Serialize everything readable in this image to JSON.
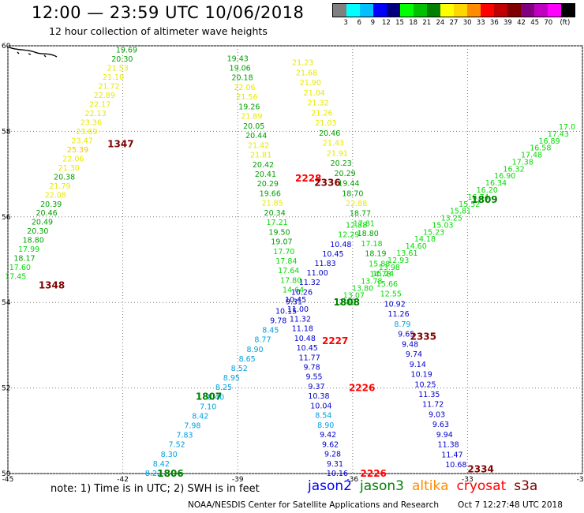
{
  "header": {
    "title": "12:00 — 23:59 UTC 10/06/2018",
    "subtitle": "12 hour collection of altimeter wave heights"
  },
  "legend": {
    "colors": [
      "#808080",
      "#00ffff",
      "#00bfff",
      "#0000ff",
      "#00007f",
      "#00ff00",
      "#00c000",
      "#008000",
      "#ffff00",
      "#ffd700",
      "#ff8c00",
      "#ff0000",
      "#c00000",
      "#800000",
      "#800080",
      "#c000c0",
      "#ff00ff",
      "#000000"
    ],
    "labels": [
      "3",
      "6",
      "9",
      "12",
      "15",
      "18",
      "21",
      "24",
      "27",
      "30",
      "33",
      "36",
      "39",
      "42",
      "45",
      "70",
      "(ft)"
    ]
  },
  "note": "note: 1) Time is in UTC; 2) SWH is in feet",
  "satellites": [
    {
      "name": "jason2",
      "color": "#0000ff"
    },
    {
      "name": "jason3",
      "color": "#008000"
    },
    {
      "name": "altika",
      "color": "#ff8c00"
    },
    {
      "name": "cryosat",
      "color": "#ff0000"
    },
    {
      "name": "s3a",
      "color": "#800000"
    }
  ],
  "footer": {
    "credit": "NOAA/NESDIS Center for Satellite Applications and Research",
    "generated": "Oct  7 12:27:48 UTC 2018"
  },
  "chart_data": {
    "type": "scatter",
    "xlim": [
      -45,
      -30
    ],
    "ylim": [
      50,
      60
    ],
    "x_ticks": [
      -45,
      -42,
      -39,
      -36,
      -33,
      -30
    ],
    "y_ticks": [
      50,
      52,
      54,
      56,
      58,
      60
    ],
    "grid": true,
    "color_scale": [
      {
        "max": 18,
        "color": "#00dd00"
      },
      {
        "max": 21,
        "color": "#00a000"
      },
      {
        "max": 24,
        "color": "#e8e800"
      },
      {
        "max": 27,
        "color": "#f0c800"
      }
    ],
    "tracks": [
      {
        "name": "1347-1348 track",
        "start": [
          -44.8,
          54.6
        ],
        "end": [
          -41.9,
          59.9
        ],
        "values": [
          "17.45",
          "17.60",
          "18.17",
          "17.99",
          "18.80",
          "20.30",
          "20.49",
          "20.46",
          "20.39",
          "22.08",
          "21.79",
          "20.38",
          "21.30",
          "22.06",
          "25.39",
          "23.47",
          "23.69",
          "23.36",
          "22.13",
          "22.17",
          "22.89",
          "21.72",
          "21.10",
          "21.53",
          "20.30",
          "19.69"
        ]
      },
      {
        "name": "2228-2227 track",
        "start": [
          -39.0,
          59.7
        ],
        "end": [
          -36.4,
          50.0
        ],
        "values": [
          "19.43",
          "19.06",
          "20.18",
          "22.06",
          "21.56",
          "19.26",
          "21.89",
          "20.05",
          "20.44",
          "21.42",
          "21.81",
          "20.42",
          "20.41",
          "20.29",
          "19.66",
          "21.85",
          "20.34",
          "17.21",
          "19.50",
          "19.07",
          "17.70",
          "17.84",
          "17.64",
          "17.80",
          "14.64",
          "10.45",
          "11.00",
          "11.32",
          "11.18",
          "10.48",
          "10.45",
          "11.77",
          "9.78",
          "9.55",
          "9.37",
          "10.38",
          "10.04",
          "8.54",
          "8.90",
          "9.42",
          "9.62",
          "9.28",
          "9.31",
          "10.16"
        ]
      },
      {
        "name": "2336-2335 track",
        "start": [
          -37.3,
          59.6
        ],
        "end": [
          -33.3,
          50.2
        ],
        "values": [
          "21.23",
          "21.68",
          "21.90",
          "21.04",
          "21.32",
          "21.26",
          "21.03",
          "20.46",
          "21.43",
          "21.91",
          "20.23",
          "20.29",
          "19.44",
          "18.70",
          "22.88",
          "18.77",
          "17.81",
          "18.80",
          "17.18",
          "18.19",
          "15.88",
          "15.24",
          "15.66",
          "12.55",
          "10.92",
          "11.26",
          "8.79",
          "9.65",
          "9.48",
          "9.74",
          "9.14",
          "10.19",
          "10.25",
          "11.35",
          "11.72",
          "9.03",
          "9.63",
          "9.94",
          "11.38",
          "11.47",
          "10.68"
        ]
      },
      {
        "name": "1807-1808 track",
        "start": [
          -41.2,
          50.0
        ],
        "end": [
          -35.9,
          55.8
        ],
        "values": [
          "8.22",
          "8.42",
          "8.30",
          "7.52",
          "7.83",
          "7.98",
          "8.42",
          "7.10",
          "8.40",
          "8.25",
          "8.95",
          "8.52",
          "8.65",
          "8.90",
          "8.77",
          "8.45",
          "9.78",
          "10.15",
          "9.31",
          "10.26",
          "11.32",
          "11.00",
          "11.83",
          "10.45",
          "10.48",
          "12.29",
          "12.88"
        ]
      },
      {
        "name": "1808-1809 track",
        "start": [
          -36.2,
          54.0
        ],
        "end": [
          -30.4,
          58.1
        ],
        "values": [
          "12.89",
          "13.07",
          "13.80",
          "13.78",
          "14.78",
          "13.98",
          "12.93",
          "13.61",
          "14.60",
          "14.18",
          "15.23",
          "15.03",
          "13.25",
          "15.81",
          "15.52",
          "16.74",
          "16.20",
          "16.34",
          "16.90",
          "16.32",
          "17.38",
          "17.48",
          "16.58",
          "16.89",
          "17.43",
          "17.0"
        ]
      }
    ],
    "pass_labels": [
      {
        "text": "1347",
        "x": -42.4,
        "y": 57.7,
        "color": "#800000"
      },
      {
        "text": "1348",
        "x": -44.2,
        "y": 54.4,
        "color": "#800000"
      },
      {
        "text": "2228",
        "x": -37.5,
        "y": 56.9,
        "color": "#ff0000"
      },
      {
        "text": "2336",
        "x": -37.0,
        "y": 56.8,
        "color": "#800000"
      },
      {
        "text": "1809",
        "x": -32.9,
        "y": 56.4,
        "color": "#008000"
      },
      {
        "text": "1808",
        "x": -36.5,
        "y": 54.0,
        "color": "#008000"
      },
      {
        "text": "2227",
        "x": -36.8,
        "y": 53.1,
        "color": "#ff0000"
      },
      {
        "text": "2335",
        "x": -34.5,
        "y": 53.2,
        "color": "#800000"
      },
      {
        "text": "2226",
        "x": -36.1,
        "y": 52.0,
        "color": "#ff0000"
      },
      {
        "text": "1807",
        "x": -40.1,
        "y": 51.8,
        "color": "#008000"
      },
      {
        "text": "1806",
        "x": -41.1,
        "y": 50.0,
        "color": "#008000"
      },
      {
        "text": "2226",
        "x": -35.8,
        "y": 50.0,
        "color": "#ff0000"
      },
      {
        "text": "2334",
        "x": -33.0,
        "y": 50.1,
        "color": "#800000"
      }
    ]
  }
}
